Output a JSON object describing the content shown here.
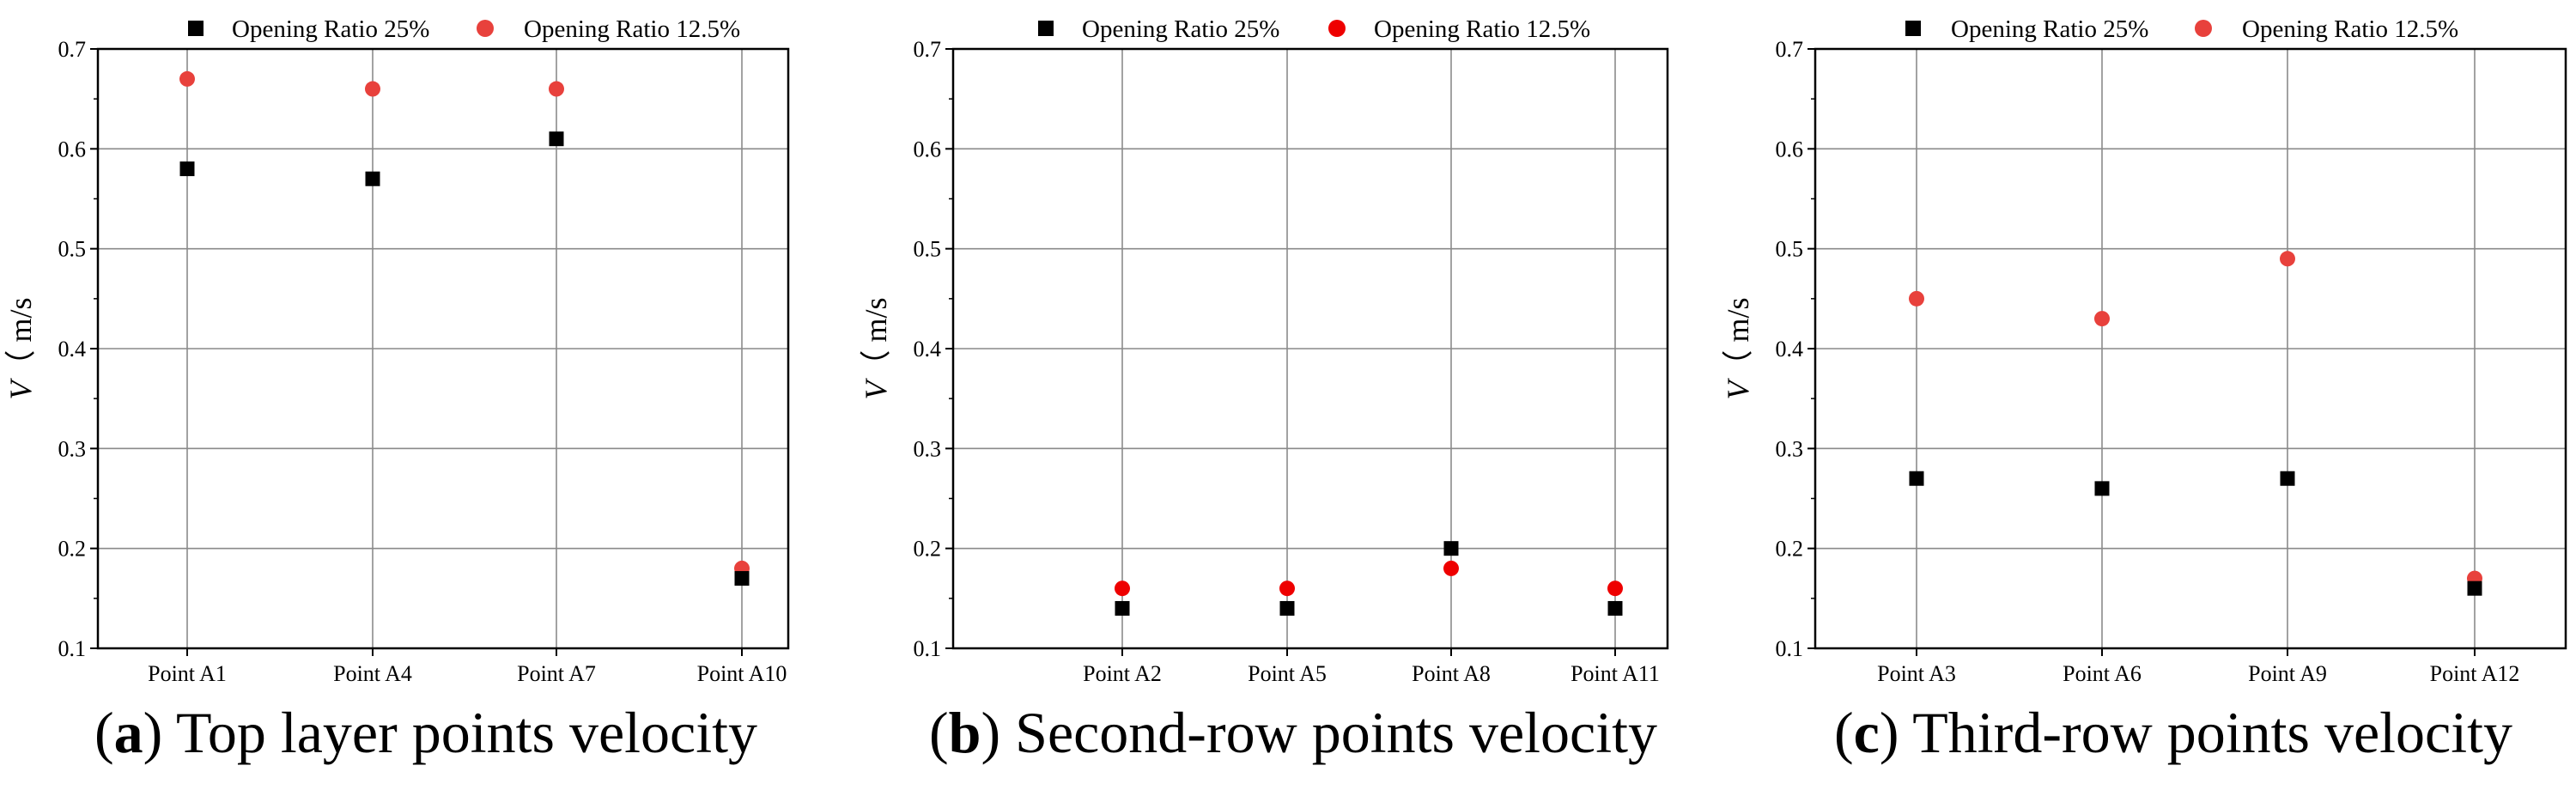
{
  "legend": {
    "series_25": "Opening Ratio 25%",
    "series_12_5": "Opening Ratio 12.5%"
  },
  "colors": {
    "series_25": "#000000",
    "series_12_5_a": "#e8413c",
    "series_12_5_b": "#ee0000",
    "series_12_5_c": "#e8413c",
    "grid": "#8a8a8a"
  },
  "chart_data": [
    {
      "type": "scatter",
      "panel_letter": "a",
      "caption": "Top layer points velocity",
      "ylabel_symbol": "V",
      "ylabel_unit": "m/s",
      "ylim": [
        0.1,
        0.7
      ],
      "yticks": [
        0.1,
        0.2,
        0.3,
        0.4,
        0.5,
        0.6,
        0.7
      ],
      "grid": true,
      "legend_position": "top",
      "categories": [
        "Point A1",
        "Point  A4",
        "Point A7",
        "Point  A10"
      ],
      "series": [
        {
          "name": "Opening Ratio 25%",
          "marker": "square",
          "values": [
            0.58,
            0.57,
            0.61,
            0.17
          ]
        },
        {
          "name": "Opening Ratio 12.5%",
          "marker": "circle",
          "values": [
            0.67,
            0.66,
            0.66,
            0.18
          ]
        }
      ]
    },
    {
      "type": "scatter",
      "panel_letter": "b",
      "caption": "Second-row points velocity",
      "ylabel_symbol": "V",
      "ylabel_unit": "m/s",
      "ylim": [
        0.1,
        0.7
      ],
      "yticks": [
        0.1,
        0.2,
        0.3,
        0.4,
        0.5,
        0.6,
        0.7
      ],
      "grid": true,
      "legend_position": "top",
      "categories": [
        "Point A2",
        "Point A5",
        "Point A8",
        "Point A11"
      ],
      "series": [
        {
          "name": "Opening Ratio 25%",
          "marker": "square",
          "values": [
            0.14,
            0.14,
            0.2,
            0.14
          ]
        },
        {
          "name": "Opening Ratio 12.5%",
          "marker": "circle",
          "values": [
            0.16,
            0.16,
            0.18,
            0.16
          ]
        }
      ]
    },
    {
      "type": "scatter",
      "panel_letter": "c",
      "caption": "Third-row points velocity",
      "ylabel_symbol": "V",
      "ylabel_unit": "m/s",
      "ylim": [
        0.1,
        0.7
      ],
      "yticks": [
        0.1,
        0.2,
        0.3,
        0.4,
        0.5,
        0.6,
        0.7
      ],
      "grid": true,
      "legend_position": "top",
      "categories": [
        "Point A3",
        "Point A6",
        "Point A9",
        "Point A12"
      ],
      "series": [
        {
          "name": "Opening Ratio 25%",
          "marker": "square",
          "values": [
            0.27,
            0.26,
            0.27,
            0.16
          ]
        },
        {
          "name": "Opening Ratio 12.5%",
          "marker": "circle",
          "values": [
            0.45,
            0.43,
            0.49,
            0.17
          ]
        }
      ]
    }
  ]
}
